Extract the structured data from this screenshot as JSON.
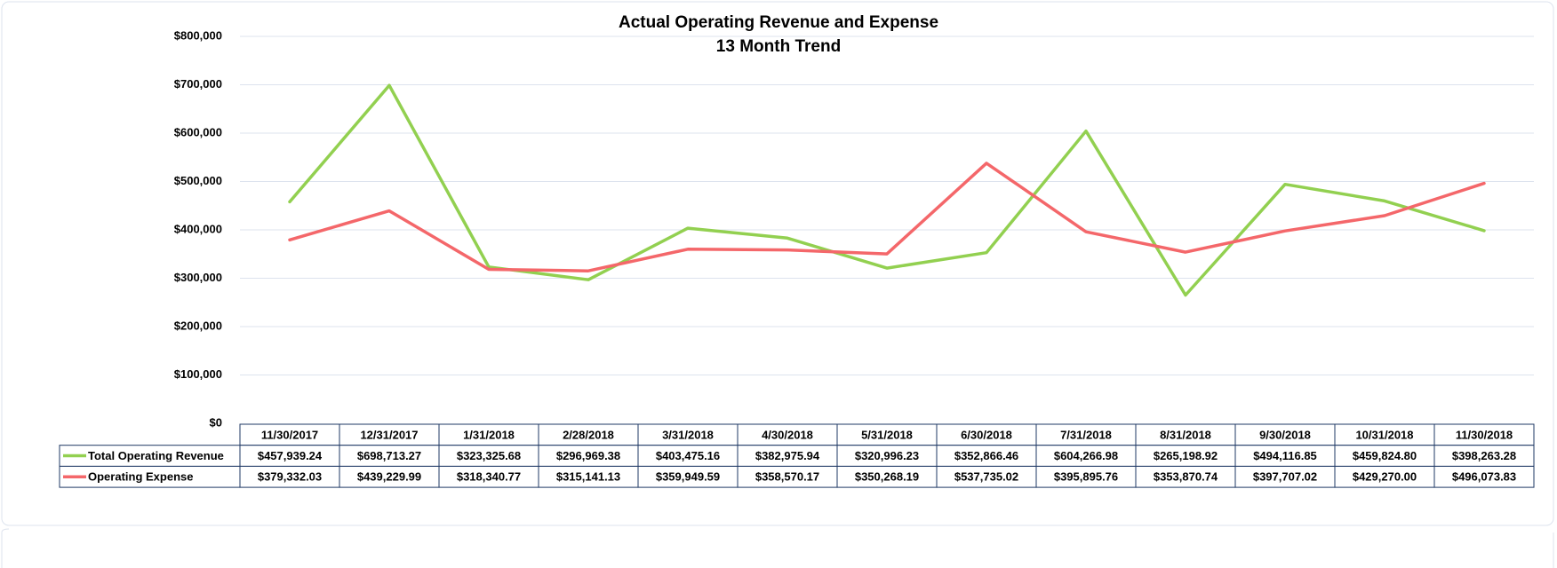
{
  "chart_data": {
    "type": "line",
    "title": "Actual Operating Revenue and Expense",
    "subtitle": "13 Month Trend",
    "categories": [
      "11/30/2017",
      "12/31/2017",
      "1/31/2018",
      "2/28/2018",
      "3/31/2018",
      "4/30/2018",
      "5/31/2018",
      "6/30/2018",
      "7/31/2018",
      "8/31/2018",
      "9/30/2018",
      "10/31/2018",
      "11/30/2018"
    ],
    "series": [
      {
        "name": "Total Operating Revenue",
        "color": "#92d050",
        "values": [
          457939.24,
          698713.27,
          323325.68,
          296969.38,
          403475.16,
          382975.94,
          320996.23,
          352866.46,
          604266.98,
          265198.92,
          494116.85,
          459824.8,
          398263.28
        ],
        "value_labels": [
          "$457,939.24",
          "$698,713.27",
          "$323,325.68",
          "$296,969.38",
          "$403,475.16",
          "$382,975.94",
          "$320,996.23",
          "$352,866.46",
          "$604,266.98",
          "$265,198.92",
          "$494,116.85",
          "$459,824.80",
          "$398,263.28"
        ]
      },
      {
        "name": "Operating Expense",
        "color": "#f4676a",
        "values": [
          379332.03,
          439229.99,
          318340.77,
          315141.13,
          359949.59,
          358570.17,
          350268.19,
          537735.02,
          395895.76,
          353870.74,
          397707.02,
          429270.0,
          496073.83
        ],
        "value_labels": [
          "$379,332.03",
          "$439,229.99",
          "$318,340.77",
          "$315,141.13",
          "$359,949.59",
          "$358,570.17",
          "$350,268.19",
          "$537,735.02",
          "$395,895.76",
          "$353,870.74",
          "$397,707.02",
          "$429,270.00",
          "$496,073.83"
        ]
      }
    ],
    "ylim": [
      0,
      800000
    ],
    "yticks": [
      {
        "value": 0,
        "label": "$0"
      },
      {
        "value": 100000,
        "label": "$100,000"
      },
      {
        "value": 200000,
        "label": "$200,000"
      },
      {
        "value": 300000,
        "label": "$300,000"
      },
      {
        "value": 400000,
        "label": "$400,000"
      },
      {
        "value": 500000,
        "label": "$500,000"
      },
      {
        "value": 600000,
        "label": "$600,000"
      },
      {
        "value": 700000,
        "label": "$700,000"
      },
      {
        "value": 800000,
        "label": "$800,000"
      }
    ],
    "grid": true
  }
}
